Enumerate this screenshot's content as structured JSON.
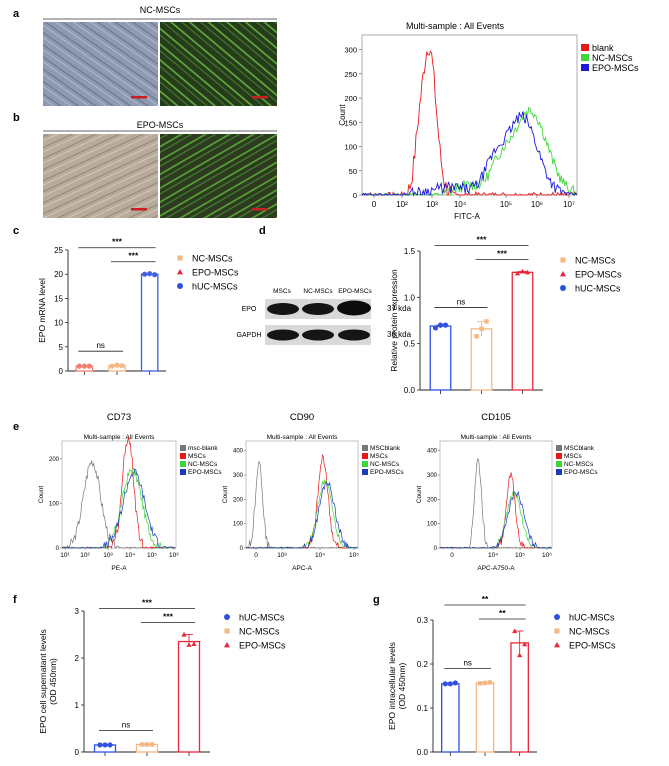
{
  "panel_letters": {
    "a": "a",
    "b": "b",
    "c": "c",
    "d": "d",
    "e": "e",
    "f": "f",
    "g": "g"
  },
  "micrographs": {
    "top_label": "NC-MSCs",
    "bottom_label": "EPO-MSCs",
    "colors": {
      "brightfield_nc": "#8c9ab0",
      "brightfield_epo": "#b8ab9c",
      "fluor": "#3f7a30"
    }
  },
  "flow_main": {
    "title": "Multi-sample : All Events",
    "ylabel": "Count",
    "xlabel": "FITC-A",
    "yticks": [
      "0",
      "50",
      "100",
      "150",
      "200",
      "250",
      "300"
    ],
    "xticks": [
      "0",
      "10²",
      "10³",
      "10⁴",
      "10⁵",
      "10⁶",
      "10⁷"
    ],
    "legend": [
      {
        "name": "blank",
        "color": "#e8181a"
      },
      {
        "name": "NC-MSCs",
        "color": "#3fd63a"
      },
      {
        "name": "EPO-MSCs",
        "color": "#1a1ad8"
      }
    ]
  },
  "western": {
    "lanes": [
      "MSCs",
      "NC-MSCs",
      "EPO-MSCs"
    ],
    "rows": [
      {
        "label": "EPO",
        "kda": "37 kda"
      },
      {
        "label": "GAPDH",
        "kda": "36 kda"
      }
    ]
  },
  "marker_panels": [
    {
      "title": "CD73",
      "subtitle": "Multi-sample : All Events",
      "xlabel": "PE-A",
      "ylabel": "Count",
      "yticks": [
        "0",
        "100",
        "200"
      ],
      "xticks": [
        "10¹",
        "10²",
        "10³",
        "10⁴",
        "10⁵",
        "10⁶"
      ],
      "legend": [
        {
          "name": "msc-blank",
          "color": "#777777"
        },
        {
          "name": "MSCs",
          "color": "#e8181a"
        },
        {
          "name": "NC-MSCs",
          "color": "#3fd63a"
        },
        {
          "name": "EPO-MSCs",
          "color": "#1a3ab8"
        }
      ]
    },
    {
      "title": "CD90",
      "subtitle": "Multi-sample : All Events",
      "xlabel": "APC-A",
      "ylabel": "Count",
      "yticks": [
        "0",
        "100",
        "200",
        "300",
        "400"
      ],
      "xticks": [
        "0",
        "10³",
        "10⁴",
        "10⁵"
      ],
      "legend": [
        {
          "name": "MSCblank",
          "color": "#777777"
        },
        {
          "name": "MSCs",
          "color": "#e8181a"
        },
        {
          "name": "NC-MSCs",
          "color": "#3fd63a"
        },
        {
          "name": "EPO-MSCs",
          "color": "#1a3ab8"
        }
      ]
    },
    {
      "title": "CD105",
      "subtitle": "Multi-sample : All Events",
      "xlabel": "APC-A750-A",
      "ylabel": "Count",
      "yticks": [
        "0",
        "100",
        "200",
        "300",
        "400"
      ],
      "xticks": [
        "0",
        "10⁴",
        "10⁵",
        "10⁶"
      ],
      "legend": [
        {
          "name": "MSCblank",
          "color": "#777777"
        },
        {
          "name": "MSCs",
          "color": "#e8181a"
        },
        {
          "name": "NC-MSCs",
          "color": "#3fd63a"
        },
        {
          "name": "EPO-MSCs",
          "color": "#1a3ab8"
        }
      ]
    }
  ],
  "chart_data": [
    {
      "panel": "c",
      "type": "bar",
      "ylabel": "EPO mRNA level",
      "ylim": [
        0,
        25
      ],
      "yticks": [
        0,
        5,
        10,
        15,
        20,
        25
      ],
      "categories": [
        "NC-MSCs",
        "EPO-MSCs",
        "hUC-MSCs"
      ],
      "values": [
        1.0,
        1.1,
        20.0
      ],
      "points": [
        [
          1.0,
          1.0,
          1.0
        ],
        [
          1.0,
          1.2,
          1.1
        ],
        [
          20.0,
          20.1,
          19.9
        ]
      ],
      "colors": [
        "#f08070",
        "#f5b783",
        "#4060e0"
      ],
      "markers": [
        "circle",
        "circle",
        "circle"
      ],
      "legend": [
        {
          "name": "NC-MSCs",
          "color": "#f5b783",
          "marker": "square"
        },
        {
          "name": "EPO-MSCs",
          "color": "#e8283a",
          "marker": "triangle"
        },
        {
          "name": "hUC-MSCs",
          "color": "#3050e0",
          "marker": "circle"
        }
      ],
      "sig": [
        {
          "pair": [
            1,
            2
          ],
          "label": "***"
        },
        {
          "pair": [
            0,
            2
          ],
          "label": "***"
        },
        {
          "pair": [
            0,
            1
          ],
          "label": "ns"
        }
      ]
    },
    {
      "panel": "d",
      "type": "bar",
      "ylabel": "Relative protein expression",
      "ylim": [
        0,
        1.5
      ],
      "yticks": [
        0.0,
        0.5,
        1.0,
        1.5
      ],
      "categories": [
        "MSCs",
        "NC-MSCs",
        "EPO-MSCs"
      ],
      "values": [
        0.69,
        0.66,
        1.27
      ],
      "points": [
        [
          0.67,
          0.7,
          0.7
        ],
        [
          0.58,
          0.66,
          0.74
        ],
        [
          1.26,
          1.28,
          1.27
        ]
      ],
      "colors": [
        "#3050e0",
        "#f5b783",
        "#e8283a"
      ],
      "markers": [
        "circle",
        "square",
        "triangle"
      ],
      "legend": [
        {
          "name": "NC-MSCs",
          "color": "#f5b783",
          "marker": "square"
        },
        {
          "name": "EPO-MSCs",
          "color": "#e8283a",
          "marker": "triangle"
        },
        {
          "name": "hUC-MSCs",
          "color": "#3050e0",
          "marker": "circle"
        }
      ],
      "sig": [
        {
          "pair": [
            0,
            1
          ],
          "label": "ns"
        },
        {
          "pair": [
            1,
            2
          ],
          "label": "***"
        },
        {
          "pair": [
            0,
            2
          ],
          "label": "***"
        }
      ]
    },
    {
      "panel": "f",
      "type": "bar",
      "ylabel": "EPO cell supernatant levels (OD 450nm)",
      "ylim": [
        0,
        3
      ],
      "yticks": [
        0,
        1,
        2,
        3
      ],
      "categories": [
        "hUC-MSCs",
        "NC-MSCs",
        "EPO-MSCs"
      ],
      "values": [
        0.15,
        0.16,
        2.35
      ],
      "points": [
        [
          0.15,
          0.15,
          0.15
        ],
        [
          0.16,
          0.16,
          0.16
        ],
        [
          2.5,
          2.28,
          2.3
        ]
      ],
      "colors": [
        "#3050e0",
        "#f5b783",
        "#e8283a"
      ],
      "markers": [
        "circle",
        "square",
        "triangle"
      ],
      "legend": [
        {
          "name": "hUC-MSCs",
          "color": "#3050e0",
          "marker": "circle"
        },
        {
          "name": "NC-MSCs",
          "color": "#f5b783",
          "marker": "square"
        },
        {
          "name": "EPO-MSCs",
          "color": "#e8283a",
          "marker": "triangle"
        }
      ],
      "sig": [
        {
          "pair": [
            0,
            1
          ],
          "label": "ns"
        },
        {
          "pair": [
            1,
            2
          ],
          "label": "***"
        },
        {
          "pair": [
            0,
            2
          ],
          "label": "***"
        }
      ]
    },
    {
      "panel": "g",
      "type": "bar",
      "ylabel": "EPO intracellular levels (OD 450nm)",
      "ylim": [
        0,
        0.3
      ],
      "yticks": [
        0.0,
        0.1,
        0.2,
        0.3
      ],
      "categories": [
        "hUC-MSCs",
        "NC-MSCs",
        "EPO-MSCs"
      ],
      "values": [
        0.155,
        0.157,
        0.248
      ],
      "points": [
        [
          0.155,
          0.155,
          0.157
        ],
        [
          0.156,
          0.157,
          0.158
        ],
        [
          0.275,
          0.22,
          0.245
        ]
      ],
      "colors": [
        "#3050e0",
        "#f5b783",
        "#e8283a"
      ],
      "markers": [
        "circle",
        "square",
        "triangle"
      ],
      "legend": [
        {
          "name": "hUC-MSCs",
          "color": "#3050e0",
          "marker": "circle"
        },
        {
          "name": "NC-MSCs",
          "color": "#f5b783",
          "marker": "square"
        },
        {
          "name": "EPO-MSCs",
          "color": "#e8283a",
          "marker": "triangle"
        }
      ],
      "sig": [
        {
          "pair": [
            0,
            1
          ],
          "label": "ns"
        },
        {
          "pair": [
            1,
            2
          ],
          "label": "**"
        },
        {
          "pair": [
            0,
            2
          ],
          "label": "**"
        }
      ]
    }
  ]
}
